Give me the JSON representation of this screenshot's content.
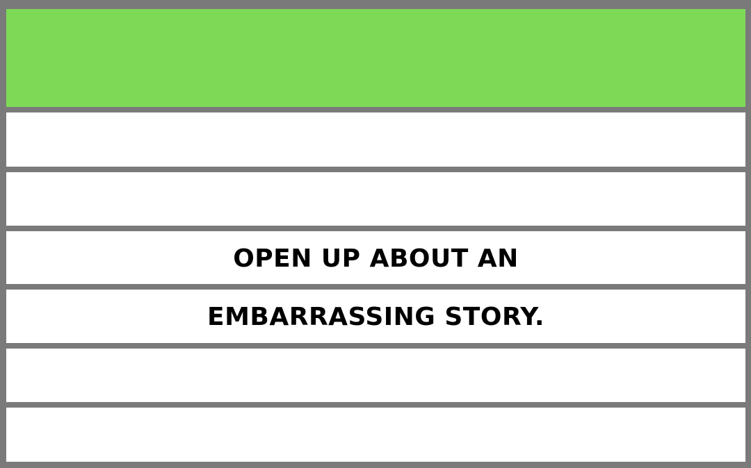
{
  "card": {
    "colors": {
      "header": "#7ed957",
      "border": "#7a7a7a",
      "row": "#ffffff",
      "text": "#000000"
    },
    "lines": [
      "",
      "",
      "OPEN UP ABOUT AN",
      "EMBARRASSING STORY.",
      "",
      ""
    ]
  }
}
